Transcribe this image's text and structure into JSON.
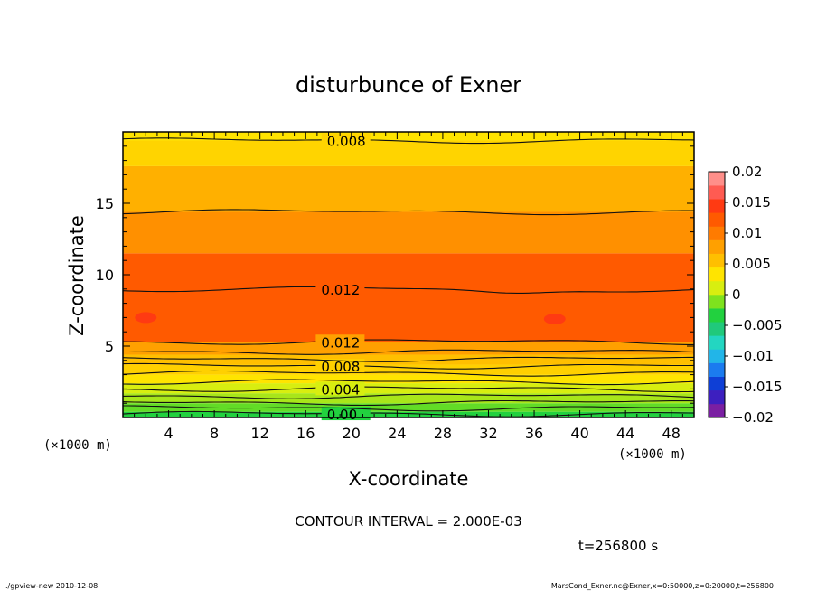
{
  "chart_data": {
    "type": "heatmap",
    "title": "disturbunce of Exner",
    "xlabel": "X-coordinate",
    "ylabel": "Z-coordinate",
    "x_unit_left": "(×1000 m)",
    "x_unit_right": "(×1000 m)",
    "xlim": [
      0,
      50
    ],
    "ylim": [
      0,
      20
    ],
    "x_ticks": [
      4,
      8,
      12,
      16,
      20,
      24,
      28,
      32,
      36,
      40,
      44,
      48
    ],
    "y_ticks": [
      5,
      10,
      15
    ],
    "colorbar": {
      "ticks": [
        "0.02",
        "0.015",
        "0.01",
        "0.005",
        "0",
        "−0.005",
        "−0.01",
        "−0.015",
        "−0.02"
      ],
      "range": [
        -0.02,
        0.02
      ],
      "colors": [
        "#7a1fa2",
        "#3d1fbf",
        "#0e3fd6",
        "#1b7bef",
        "#22b5e8",
        "#23d6c1",
        "#20c97b",
        "#22d13f",
        "#7ee21e",
        "#d8ee10",
        "#ffe400",
        "#ffbf00",
        "#ffa000",
        "#ff7b00",
        "#ff5a00",
        "#ff3a12",
        "#ff5b52",
        "#ff8f8a"
      ]
    },
    "bands": [
      {
        "z0": 0.0,
        "z1": 0.4,
        "value": 0.0,
        "color": "#22d13f"
      },
      {
        "z0": 0.4,
        "z1": 1.0,
        "value": 0.002,
        "color": "#62dc26"
      },
      {
        "z0": 1.0,
        "z1": 1.7,
        "value": 0.004,
        "color": "#a8e61a"
      },
      {
        "z0": 1.7,
        "z1": 2.4,
        "value": 0.005,
        "color": "#d8ee10"
      },
      {
        "z0": 2.4,
        "z1": 3.0,
        "value": 0.006,
        "color": "#ffe400"
      },
      {
        "z0": 3.0,
        "z1": 3.7,
        "value": 0.007,
        "color": "#ffd000"
      },
      {
        "z0": 3.7,
        "z1": 4.4,
        "value": 0.008,
        "color": "#ffbf00"
      },
      {
        "z0": 4.4,
        "z1": 5.3,
        "value": 0.01,
        "color": "#ffa000"
      },
      {
        "z0": 5.3,
        "z1": 11.5,
        "value": 0.012,
        "color": "#ff5a00"
      },
      {
        "z0": 11.5,
        "z1": 14.4,
        "value": 0.01,
        "color": "#ff9000"
      },
      {
        "z0": 14.4,
        "z1": 17.6,
        "value": 0.009,
        "color": "#ffb000"
      },
      {
        "z0": 17.6,
        "z1": 19.4,
        "value": 0.008,
        "color": "#ffd400"
      },
      {
        "z0": 19.4,
        "z1": 20.0,
        "value": 0.007,
        "color": "#ffe400"
      }
    ],
    "contours": [
      {
        "z": 0.25,
        "label": "0.00"
      },
      {
        "z": 0.65
      },
      {
        "z": 1.05
      },
      {
        "z": 1.5
      },
      {
        "z": 2.0,
        "label": "0.004"
      },
      {
        "z": 2.5
      },
      {
        "z": 3.1
      },
      {
        "z": 3.6,
        "label": "0.008"
      },
      {
        "z": 4.1
      },
      {
        "z": 4.6
      },
      {
        "z": 5.3,
        "label": "0.012"
      },
      {
        "z": 9.0,
        "label": "0.012"
      },
      {
        "z": 14.4
      },
      {
        "z": 19.4,
        "label": "0.008"
      }
    ],
    "maxima": [
      {
        "x": 2.0,
        "z": 7.0
      },
      {
        "x": 37.8,
        "z": 6.9
      }
    ],
    "contour_interval": "CONTOUR INTERVAL = 2.000E-03",
    "time": "t=256800 s"
  },
  "footer": {
    "left": "./gpview-new  2010-12-08",
    "right": "MarsCond_Exner.nc@Exner,x=0:50000,z=0:20000,t=256800"
  }
}
